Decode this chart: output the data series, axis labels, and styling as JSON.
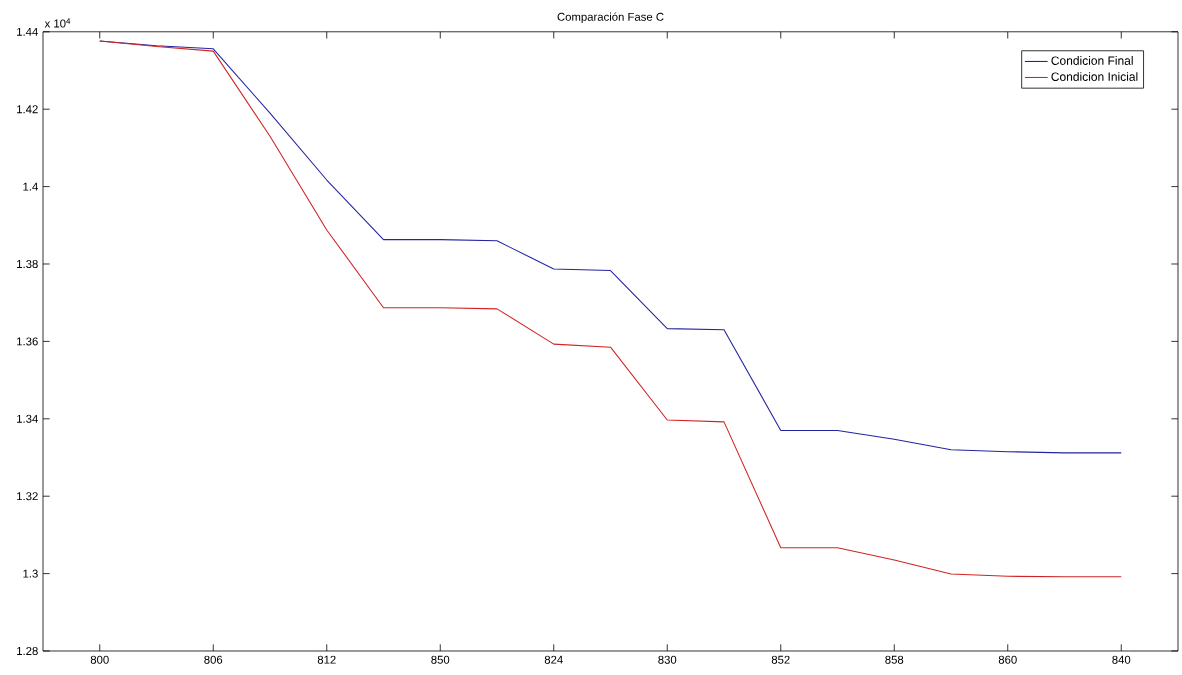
{
  "chart_data": {
    "type": "line",
    "title": "Comparación Fase C",
    "annotations": [
      "x 10$^{4}$"
    ],
    "categories": [
      "800",
      null,
      "806",
      null,
      "812",
      null,
      "850",
      null,
      "824",
      null,
      "830",
      null,
      "852",
      null,
      "858",
      null,
      "860",
      null,
      "840"
    ],
    "series": [
      {
        "name": "Condicion Final",
        "color": "#2424a0",
        "values": [
          1.4376,
          1.4364,
          1.4356,
          1.419,
          1.4017,
          1.3863,
          1.3863,
          1.386,
          1.3787,
          1.3783,
          1.3633,
          1.363,
          1.337,
          1.337,
          1.3347,
          1.332,
          1.3315,
          1.3312,
          1.3312
        ]
      },
      {
        "name": "Condicion Inicial",
        "color": "#d02424",
        "values": [
          1.4376,
          1.4362,
          1.435,
          1.413,
          1.3888,
          1.3687,
          1.3687,
          1.3684,
          1.3593,
          1.3585,
          1.3397,
          1.3392,
          1.3067,
          1.3067,
          1.3035,
          1.2999,
          1.2993,
          1.2992,
          1.2992
        ]
      }
    ],
    "ylim": [
      1.28,
      1.44
    ],
    "yticks": [
      1.28,
      {
        "value": 1.3,
        "label": "1.3"
      },
      1.32,
      1.34,
      1.36,
      1.38,
      {
        "value": 1.4,
        "label": "1.4"
      },
      1.42,
      1.44
    ],
    "legend": "top right",
    "marker": "none",
    "line_style": "solid",
    "grid": false
  }
}
